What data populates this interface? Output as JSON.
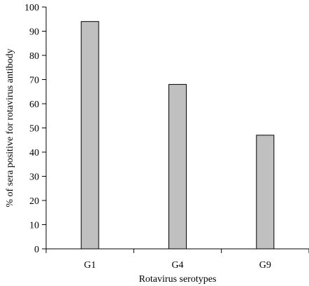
{
  "chart_data": {
    "type": "bar",
    "title": "",
    "xlabel": "Rotavirus serotypes",
    "ylabel": "% of sera positive for rotavirus antibody",
    "categories": [
      "G1",
      "G4",
      "G9"
    ],
    "values": [
      94,
      68,
      47
    ],
    "ylim": [
      0,
      100
    ],
    "yticks": [
      "0",
      "10",
      "20",
      "30",
      "40",
      "50",
      "60",
      "70",
      "80",
      "90",
      "100"
    ],
    "grid": false,
    "legend": "none",
    "bar_color": "#c0c0c0",
    "bar_edge_color": "#000000"
  }
}
